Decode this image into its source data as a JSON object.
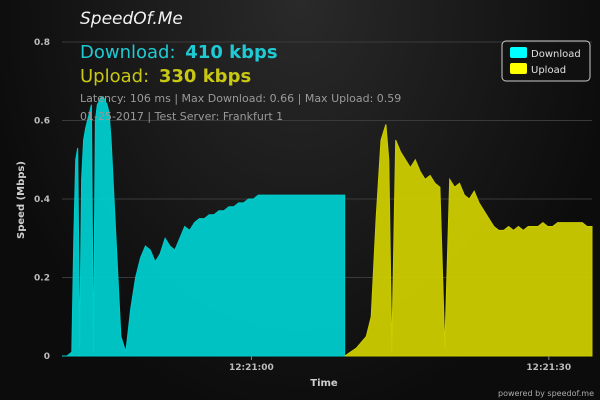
{
  "brand": "SpeedOf.Me",
  "summary": {
    "download_label": "Download:",
    "download_value": "410 kbps",
    "upload_label": "Upload:",
    "upload_value": "330 kbps",
    "stats_line": "Latency: 106 ms | Max Download: 0.66 | Max Upload: 0.59",
    "date_line": "01-25-2017 | Test Server: Frankfurt 1"
  },
  "footer": {
    "powered_by": "powered by speedof.me"
  },
  "colors": {
    "download": "#00cccc",
    "upload": "#cccc00",
    "grid": "#3a3a3a"
  },
  "chart_data": {
    "type": "area",
    "xlabel": "Time",
    "ylabel": "Speed (Mbps)",
    "ylim": [
      0,
      0.8
    ],
    "yticks": [
      "0",
      "0.2",
      "0.4",
      "0.6",
      "0.8"
    ],
    "xticks": [
      "12:21:00",
      "12:21:30"
    ],
    "legend_position": "top-right",
    "grid": true,
    "series": [
      {
        "name": "Download",
        "x": [
          0,
          0.5,
          1,
          1.2,
          1.4,
          1.6,
          1.8,
          2.0,
          2.2,
          2.4,
          2.6,
          2.8,
          3.0,
          3.2,
          3.4,
          3.6,
          3.8,
          4.0,
          4.2,
          4.4,
          4.6,
          4.8,
          5.0,
          5.5,
          6.0,
          6.5,
          7.0,
          7.5,
          8.0,
          8.5,
          9.0,
          9.5,
          10.0,
          10.5,
          11.0,
          11.5,
          12.0,
          12.5,
          13.0,
          13.5,
          14.0,
          14.5,
          15.0,
          15.5,
          16.0,
          16.5,
          17.0,
          17.5,
          18.0,
          18.5,
          19.0,
          19.5,
          20.0,
          20.5,
          21.0,
          21.5,
          22.0,
          22.5,
          23.0,
          23.5,
          24.0,
          24.5,
          25.0,
          25.5,
          26.0,
          26.5,
          27.0,
          27.5,
          28.0,
          28.5,
          28.8
        ],
        "values": [
          0,
          0,
          0.01,
          0.3,
          0.5,
          0.53,
          0.02,
          0.45,
          0.55,
          0.58,
          0.6,
          0.62,
          0.64,
          0.01,
          0.6,
          0.64,
          0.65,
          0.66,
          0.66,
          0.65,
          0.64,
          0.62,
          0.55,
          0.3,
          0.05,
          0.01,
          0.12,
          0.2,
          0.25,
          0.28,
          0.27,
          0.24,
          0.26,
          0.3,
          0.28,
          0.27,
          0.3,
          0.33,
          0.32,
          0.34,
          0.35,
          0.35,
          0.36,
          0.36,
          0.37,
          0.37,
          0.38,
          0.38,
          0.39,
          0.39,
          0.4,
          0.4,
          0.41,
          0.41,
          0.41,
          0.41,
          0.41,
          0.41,
          0.41,
          0.41,
          0.41,
          0.41,
          0.41,
          0.41,
          0.41,
          0.41,
          0.41,
          0.41,
          0.41,
          0.41,
          0.41
        ]
      },
      {
        "name": "Upload",
        "x": [
          28.8,
          30.0,
          31.0,
          31.5,
          32.0,
          32.5,
          33.0,
          33.3,
          33.6,
          34.0,
          34.5,
          35.0,
          35.5,
          36.0,
          36.5,
          37.0,
          37.5,
          38.0,
          38.5,
          39.0,
          39.5,
          40.0,
          40.5,
          41.0,
          41.5,
          42.0,
          42.5,
          43.0,
          43.5,
          44.0,
          44.5,
          45.0,
          45.5,
          46.0,
          46.5,
          47.0,
          47.5,
          48.0,
          48.5,
          49.0,
          49.5,
          50.0,
          50.5,
          51.0,
          51.5,
          52.0,
          52.5,
          53.0,
          53.5,
          54.0
        ],
        "values": [
          0,
          0.02,
          0.05,
          0.1,
          0.35,
          0.55,
          0.59,
          0.5,
          0.01,
          0.55,
          0.52,
          0.5,
          0.48,
          0.5,
          0.47,
          0.45,
          0.46,
          0.44,
          0.43,
          0.02,
          0.45,
          0.43,
          0.44,
          0.41,
          0.4,
          0.42,
          0.39,
          0.37,
          0.35,
          0.33,
          0.32,
          0.32,
          0.33,
          0.32,
          0.33,
          0.32,
          0.33,
          0.33,
          0.33,
          0.34,
          0.33,
          0.33,
          0.34,
          0.34,
          0.34,
          0.34,
          0.34,
          0.34,
          0.33,
          0.33
        ]
      }
    ]
  }
}
